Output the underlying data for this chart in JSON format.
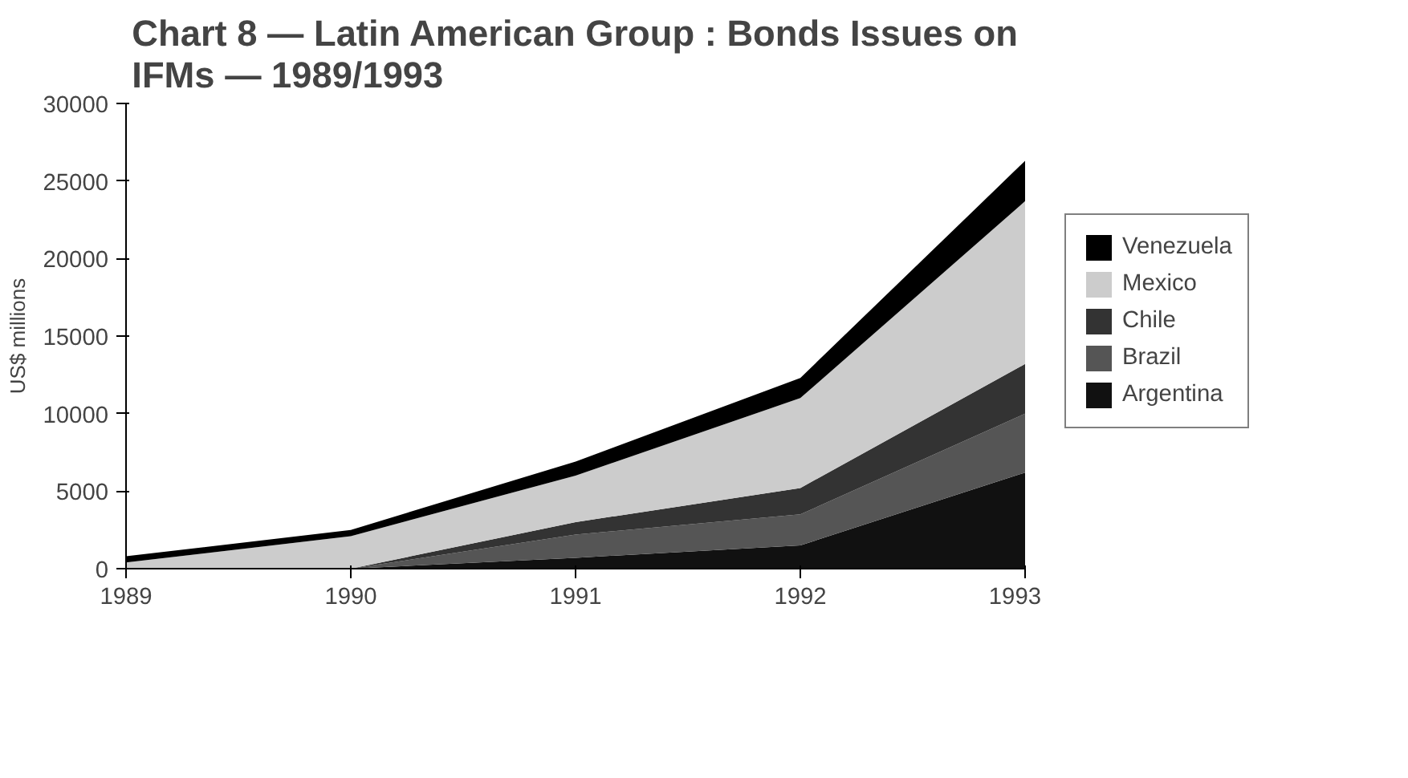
{
  "chart_data": {
    "type": "area",
    "stacked": true,
    "title": "Chart 8 — Latin American Group : Bonds Issues on IFMs — 1989/1993",
    "ylabel": "US$ millions",
    "x": [
      1989,
      1990,
      1991,
      1992,
      1993
    ],
    "xlim": [
      1989,
      1993
    ],
    "xticks": [
      1989,
      1990,
      1991,
      1992,
      1993
    ],
    "ylim": [
      0,
      30000
    ],
    "yticks": [
      0,
      5000,
      10000,
      15000,
      20000,
      25000,
      30000
    ],
    "legend": "right",
    "grid": false,
    "series": [
      {
        "name": "Argentina",
        "color": "#111111",
        "values": [
          0,
          0,
          700,
          1500,
          6200
        ]
      },
      {
        "name": "Brazil",
        "color": "#555555",
        "values": [
          0,
          0,
          1500,
          2000,
          3800
        ]
      },
      {
        "name": "Chile",
        "color": "#333333",
        "values": [
          0,
          0,
          800,
          1700,
          3200
        ]
      },
      {
        "name": "Mexico",
        "color": "#cccccc",
        "values": [
          400,
          2100,
          3000,
          5800,
          10500
        ]
      },
      {
        "name": "Venezuela",
        "color": "#000000",
        "values": [
          400,
          400,
          900,
          1300,
          2600
        ]
      }
    ]
  }
}
